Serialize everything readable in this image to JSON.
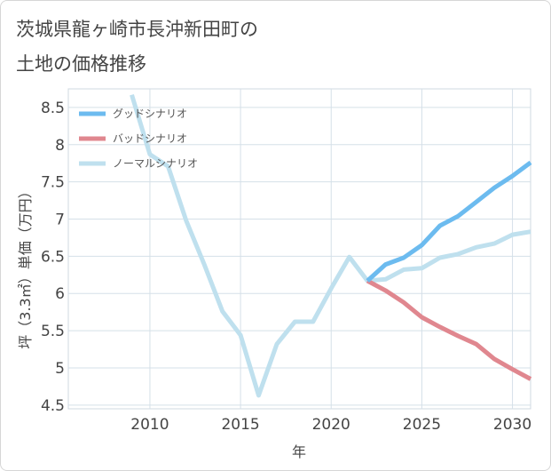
{
  "title_line1": "茨城県龍ヶ崎市長沖新田町の",
  "title_line2": "土地の価格推移",
  "chart_data": {
    "type": "line",
    "xlabel": "年",
    "ylabel": "坪（3.3㎡）単価（万円）",
    "xlim": [
      2005.5,
      2031
    ],
    "ylim": [
      4.45,
      8.75
    ],
    "x_ticks": [
      2010,
      2015,
      2020,
      2025,
      2030
    ],
    "y_ticks": [
      4.5,
      5,
      5.5,
      6,
      6.5,
      7,
      7.5,
      8,
      8.5
    ],
    "grid": true,
    "legend_position": "top-left",
    "series": [
      {
        "name": "グッドシナリオ",
        "color": "#6cbbef",
        "x": [
          2022,
          2023,
          2024,
          2025,
          2026,
          2027,
          2028,
          2029,
          2030,
          2031
        ],
        "y": [
          6.17,
          6.39,
          6.48,
          6.65,
          6.91,
          7.04,
          7.23,
          7.42,
          7.58,
          7.76
        ]
      },
      {
        "name": "バッドシナリオ",
        "color": "#e0878f",
        "x": [
          2022,
          2023,
          2024,
          2025,
          2026,
          2027,
          2028,
          2029,
          2030,
          2031
        ],
        "y": [
          6.17,
          6.04,
          5.88,
          5.68,
          5.55,
          5.43,
          5.32,
          5.12,
          4.98,
          4.85
        ]
      },
      {
        "name": "ノーマルシナリオ",
        "color": "#bfe0ee",
        "x": [
          2009,
          2010,
          2011,
          2012,
          2013,
          2014,
          2015,
          2016,
          2017,
          2018,
          2019,
          2020,
          2021,
          2022,
          2023,
          2024,
          2025,
          2026,
          2027,
          2028,
          2029,
          2030,
          2031
        ],
        "y": [
          8.67,
          7.87,
          7.71,
          6.98,
          6.39,
          5.76,
          5.44,
          4.63,
          5.32,
          5.62,
          5.62,
          6.07,
          6.49,
          6.17,
          6.19,
          6.32,
          6.34,
          6.48,
          6.53,
          6.62,
          6.67,
          6.79,
          6.83
        ]
      }
    ]
  }
}
